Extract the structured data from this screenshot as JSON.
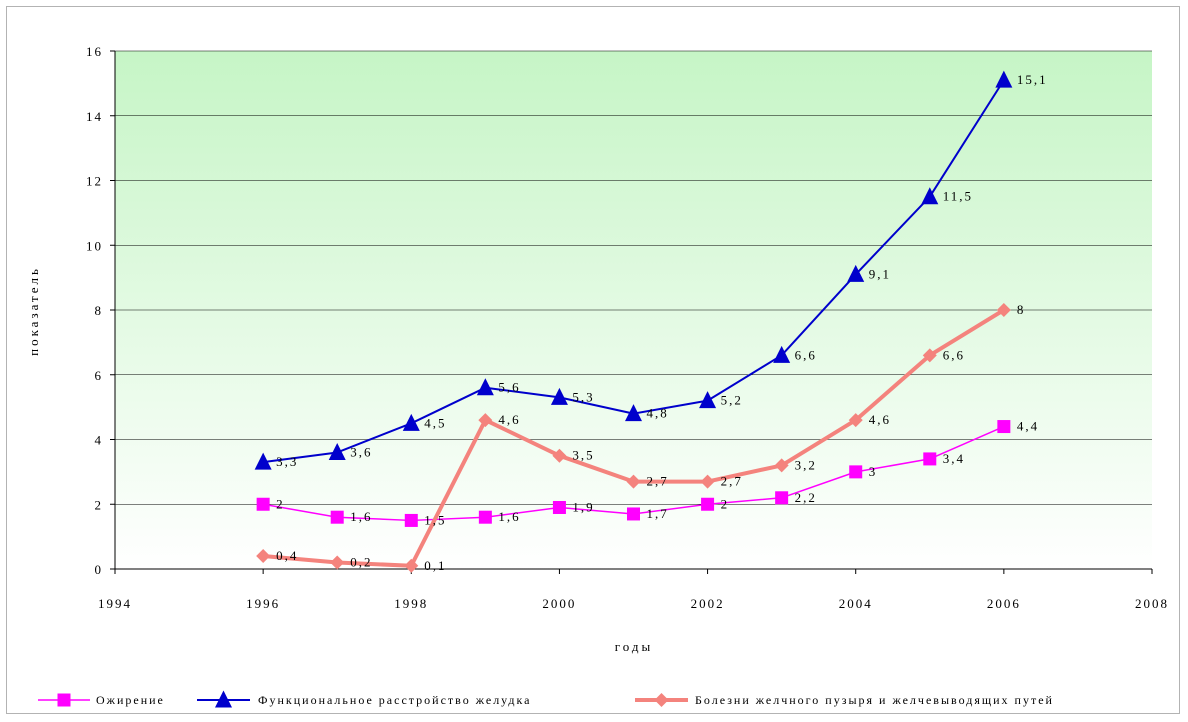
{
  "chart_data": {
    "type": "line",
    "title": "",
    "xlabel": "годы",
    "ylabel": "показатель",
    "xlim": [
      1994,
      2008
    ],
    "ylim": [
      0,
      16
    ],
    "xticks": [
      "1994",
      "1996",
      "1998",
      "2000",
      "2002",
      "2004",
      "2006",
      "2008"
    ],
    "yticks": [
      "0",
      "2",
      "4",
      "6",
      "8",
      "10",
      "12",
      "14",
      "16"
    ],
    "grid": "horizontal",
    "legend": "bottom",
    "x": [
      1996,
      1997,
      1998,
      1999,
      2000,
      2001,
      2002,
      2003,
      2004,
      2005,
      2006
    ],
    "series": [
      {
        "name": "Ожирение",
        "color": "#ff00ff",
        "marker": "square",
        "values": [
          2,
          1.6,
          1.5,
          1.6,
          1.9,
          1.7,
          2,
          2.2,
          3,
          3.4,
          4.4
        ],
        "labels": [
          "2",
          "1,6",
          "1,5",
          "1,6",
          "1,9",
          "1,7",
          "2",
          "2,2",
          "3",
          "3,4",
          "4,4"
        ]
      },
      {
        "name": "Функциональное расстройство желудка",
        "color": "#0000cc",
        "marker": "triangle",
        "values": [
          3.3,
          3.6,
          4.5,
          5.6,
          5.3,
          4.8,
          5.2,
          6.6,
          9.1,
          11.5,
          15.1
        ],
        "labels": [
          "3,3",
          "3,6",
          "4,5",
          "5,6",
          "5,3",
          "4,8",
          "5,2",
          "6,6",
          "9,1",
          "11,5",
          "15,1"
        ]
      },
      {
        "name": "Болезни желчного пузыря и желчевыводящих путей",
        "color": "#f4837d",
        "marker": "diamond",
        "values": [
          0.4,
          0.2,
          0.1,
          4.6,
          3.5,
          2.7,
          2.7,
          3.2,
          4.6,
          6.6,
          8
        ],
        "labels": [
          "0,4",
          "0,2",
          "0,1",
          "4,6",
          "3,5",
          "2,7",
          "2,7",
          "3,2",
          "4,6",
          "6,6",
          "8"
        ]
      }
    ],
    "background": {
      "top": "#c6f5c6",
      "bottom": "#ffffff"
    }
  }
}
